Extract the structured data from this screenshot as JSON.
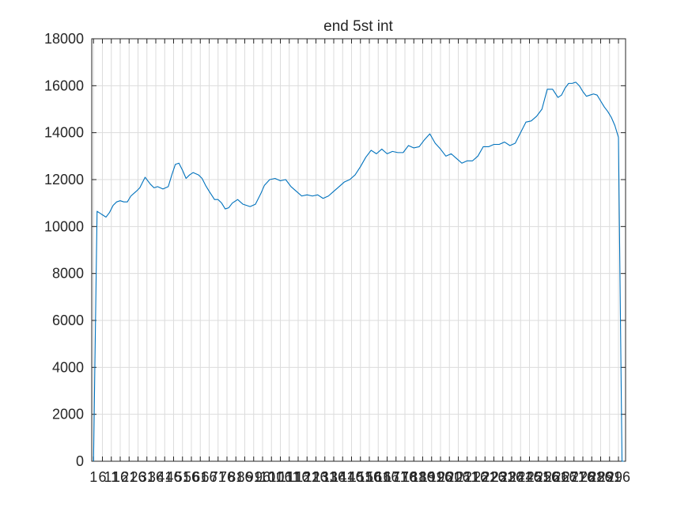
{
  "chart_data": {
    "type": "line",
    "title": "end 5st int",
    "xlabel": "",
    "ylabel": "",
    "xlim": [
      0,
      300
    ],
    "ylim": [
      0,
      18000
    ],
    "grid": true,
    "yticks": [
      0,
      2000,
      4000,
      6000,
      8000,
      10000,
      12000,
      14000,
      16000,
      18000
    ],
    "xticks": [
      1,
      6,
      11,
      16,
      21,
      26,
      31,
      36,
      41,
      46,
      51,
      56,
      61,
      66,
      71,
      76,
      81,
      86,
      91,
      96,
      101,
      106,
      111,
      116,
      121,
      126,
      131,
      136,
      141,
      146,
      151,
      156,
      161,
      166,
      171,
      176,
      181,
      186,
      191,
      196,
      201,
      206,
      211,
      216,
      221,
      226,
      231,
      236,
      241,
      246,
      251,
      256,
      261,
      266,
      271,
      276,
      281,
      286,
      291,
      296
    ],
    "xticklabels": [
      "1",
      "6",
      "11",
      "16",
      "21",
      "26",
      "31",
      "36",
      "41",
      "46",
      "51",
      "56",
      "61",
      "66",
      "71",
      "76",
      "81",
      "86",
      "91",
      "96",
      "101",
      "106",
      "111",
      "116",
      "121",
      "126",
      "131",
      "136",
      "141",
      "146",
      "151",
      "156",
      "161",
      "166",
      "171",
      "176",
      "181",
      "186",
      "191",
      "196",
      "201",
      "206",
      "211",
      "216",
      "221",
      "226",
      "231",
      "236",
      "241",
      "246",
      "251",
      "256",
      "261",
      "266",
      "271",
      "276",
      "281",
      "286",
      "291",
      "296"
    ],
    "series": [
      {
        "color": "#0072BD",
        "x": [
          1,
          3,
          6,
          8,
          10,
          12,
          14,
          16,
          18,
          20,
          22,
          25,
          27,
          30,
          33,
          35,
          37,
          40,
          43,
          45,
          47,
          49,
          51,
          53,
          55,
          57,
          60,
          62,
          64,
          66,
          69,
          71,
          73,
          75,
          77,
          79,
          82,
          85,
          87,
          89,
          92,
          95,
          97,
          100,
          103,
          106,
          109,
          112,
          115,
          118,
          121,
          124,
          127,
          130,
          133,
          136,
          139,
          142,
          145,
          148,
          151,
          154,
          157,
          160,
          163,
          166,
          169,
          172,
          175,
          178,
          181,
          184,
          187,
          190,
          193,
          196,
          199,
          202,
          205,
          208,
          211,
          214,
          217,
          220,
          223,
          226,
          229,
          232,
          235,
          238,
          241,
          244,
          247,
          250,
          253,
          256,
          259,
          262,
          264,
          266,
          268,
          270,
          272,
          274,
          276,
          278,
          280,
          282,
          284,
          286,
          288,
          290,
          292,
          294,
          296,
          298,
          299
        ],
        "y": [
          0,
          10650,
          10500,
          10400,
          10600,
          10900,
          11050,
          11100,
          11050,
          11050,
          11300,
          11500,
          11650,
          12100,
          11800,
          11650,
          11700,
          11600,
          11700,
          12200,
          12650,
          12700,
          12400,
          12050,
          12200,
          12300,
          12200,
          12050,
          11750,
          11500,
          11150,
          11150,
          11000,
          10750,
          10800,
          11000,
          11150,
          10950,
          10900,
          10850,
          10950,
          11400,
          11750,
          12000,
          12050,
          11950,
          12000,
          11700,
          11500,
          11300,
          11350,
          11300,
          11350,
          11200,
          11300,
          11500,
          11700,
          11900,
          12000,
          12200,
          12550,
          12950,
          13250,
          13100,
          13300,
          13100,
          13200,
          13150,
          13150,
          13450,
          13350,
          13400,
          13700,
          13950,
          13550,
          13300,
          13000,
          13100,
          12900,
          12700,
          12800,
          12800,
          13000,
          13400,
          13400,
          13500,
          13500,
          13600,
          13450,
          13550,
          14000,
          14450,
          14500,
          14700,
          15000,
          15850,
          15850,
          15500,
          15600,
          15900,
          16100,
          16100,
          16150,
          16000,
          15750,
          15550,
          15600,
          15650,
          15600,
          15350,
          15100,
          14900,
          14650,
          14300,
          13800,
          0,
          0
        ]
      }
    ]
  }
}
